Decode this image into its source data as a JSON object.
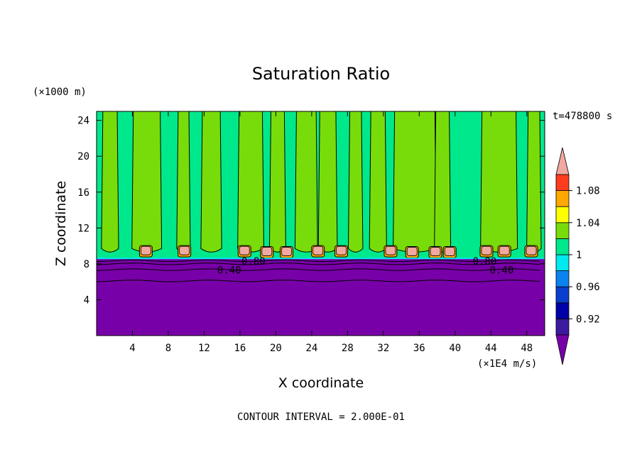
{
  "chart_data": {
    "type": "heatmap",
    "title": "Saturation Ratio",
    "xlabel": "X coordinate",
    "ylabel": "Z coordinate",
    "x_unit": "(×1E4 m/s)",
    "y_unit": "(×1000 m)",
    "time_label": "t=478800 s",
    "footer": "CONTOUR INTERVAL = 2.000E-01",
    "xlim": [
      0,
      50
    ],
    "ylim": [
      0,
      25
    ],
    "x_ticks": [
      4,
      8,
      12,
      16,
      20,
      24,
      28,
      32,
      36,
      40,
      44,
      48
    ],
    "y_ticks": [
      4,
      8,
      12,
      16,
      20,
      24
    ],
    "colorbar": {
      "levels": [
        0.9,
        0.92,
        0.94,
        0.96,
        0.98,
        1.0,
        1.02,
        1.04,
        1.06,
        1.08,
        1.1
      ],
      "tick_labels": [
        "0.92",
        "0.96",
        "1",
        "1.04",
        "1.08"
      ],
      "colors": [
        "#3c1aa0",
        "#0000a8",
        "#0a3ecc",
        "#0a82f0",
        "#00e8f0",
        "#00e88c",
        "#78dc0a",
        "#ffff00",
        "#ffa800",
        "#ff3c1e"
      ],
      "under_color": "#7800a8",
      "over_color": "#f0a8a0"
    },
    "regions": {
      "dry_layer_top_z": 8.6,
      "dry_layer_color": "#7800a8",
      "upper_color": "#00e88c"
    },
    "contour_labels": [
      {
        "text": "0.80",
        "x": 17.5,
        "z": 8.3
      },
      {
        "text": "0.40",
        "x": 14.8,
        "z": 7.3
      },
      {
        "text": "0.80",
        "x": 43.3,
        "z": 8.3
      },
      {
        "text": "0.40",
        "x": 45.2,
        "z": 7.3
      }
    ],
    "ice_supersaturated_cells": [
      {
        "x": 5.5,
        "z": 9.4
      },
      {
        "x": 9.8,
        "z": 9.4
      },
      {
        "x": 16.5,
        "z": 9.4
      },
      {
        "x": 19.0,
        "z": 9.3
      },
      {
        "x": 21.2,
        "z": 9.3
      },
      {
        "x": 24.7,
        "z": 9.4
      },
      {
        "x": 27.3,
        "z": 9.4
      },
      {
        "x": 32.8,
        "z": 9.4
      },
      {
        "x": 35.2,
        "z": 9.3
      },
      {
        "x": 37.8,
        "z": 9.3
      },
      {
        "x": 39.4,
        "z": 9.3
      },
      {
        "x": 43.5,
        "z": 9.4
      },
      {
        "x": 45.5,
        "z": 9.4
      },
      {
        "x": 48.5,
        "z": 9.4
      }
    ],
    "moist_plumes": [
      {
        "x": 1.5,
        "w": 1.6
      },
      {
        "x": 5.6,
        "w": 3.0
      },
      {
        "x": 9.7,
        "w": 1.2
      },
      {
        "x": 12.8,
        "w": 2.0
      },
      {
        "x": 17.2,
        "w": 2.6
      },
      {
        "x": 20.2,
        "w": 1.5
      },
      {
        "x": 23.4,
        "w": 2.2
      },
      {
        "x": 25.8,
        "w": 1.8
      },
      {
        "x": 28.9,
        "w": 1.3
      },
      {
        "x": 31.4,
        "w": 1.6
      },
      {
        "x": 35.5,
        "w": 4.5
      },
      {
        "x": 38.6,
        "w": 1.5
      },
      {
        "x": 44.9,
        "w": 3.8
      },
      {
        "x": 48.8,
        "w": 1.3
      }
    ]
  }
}
